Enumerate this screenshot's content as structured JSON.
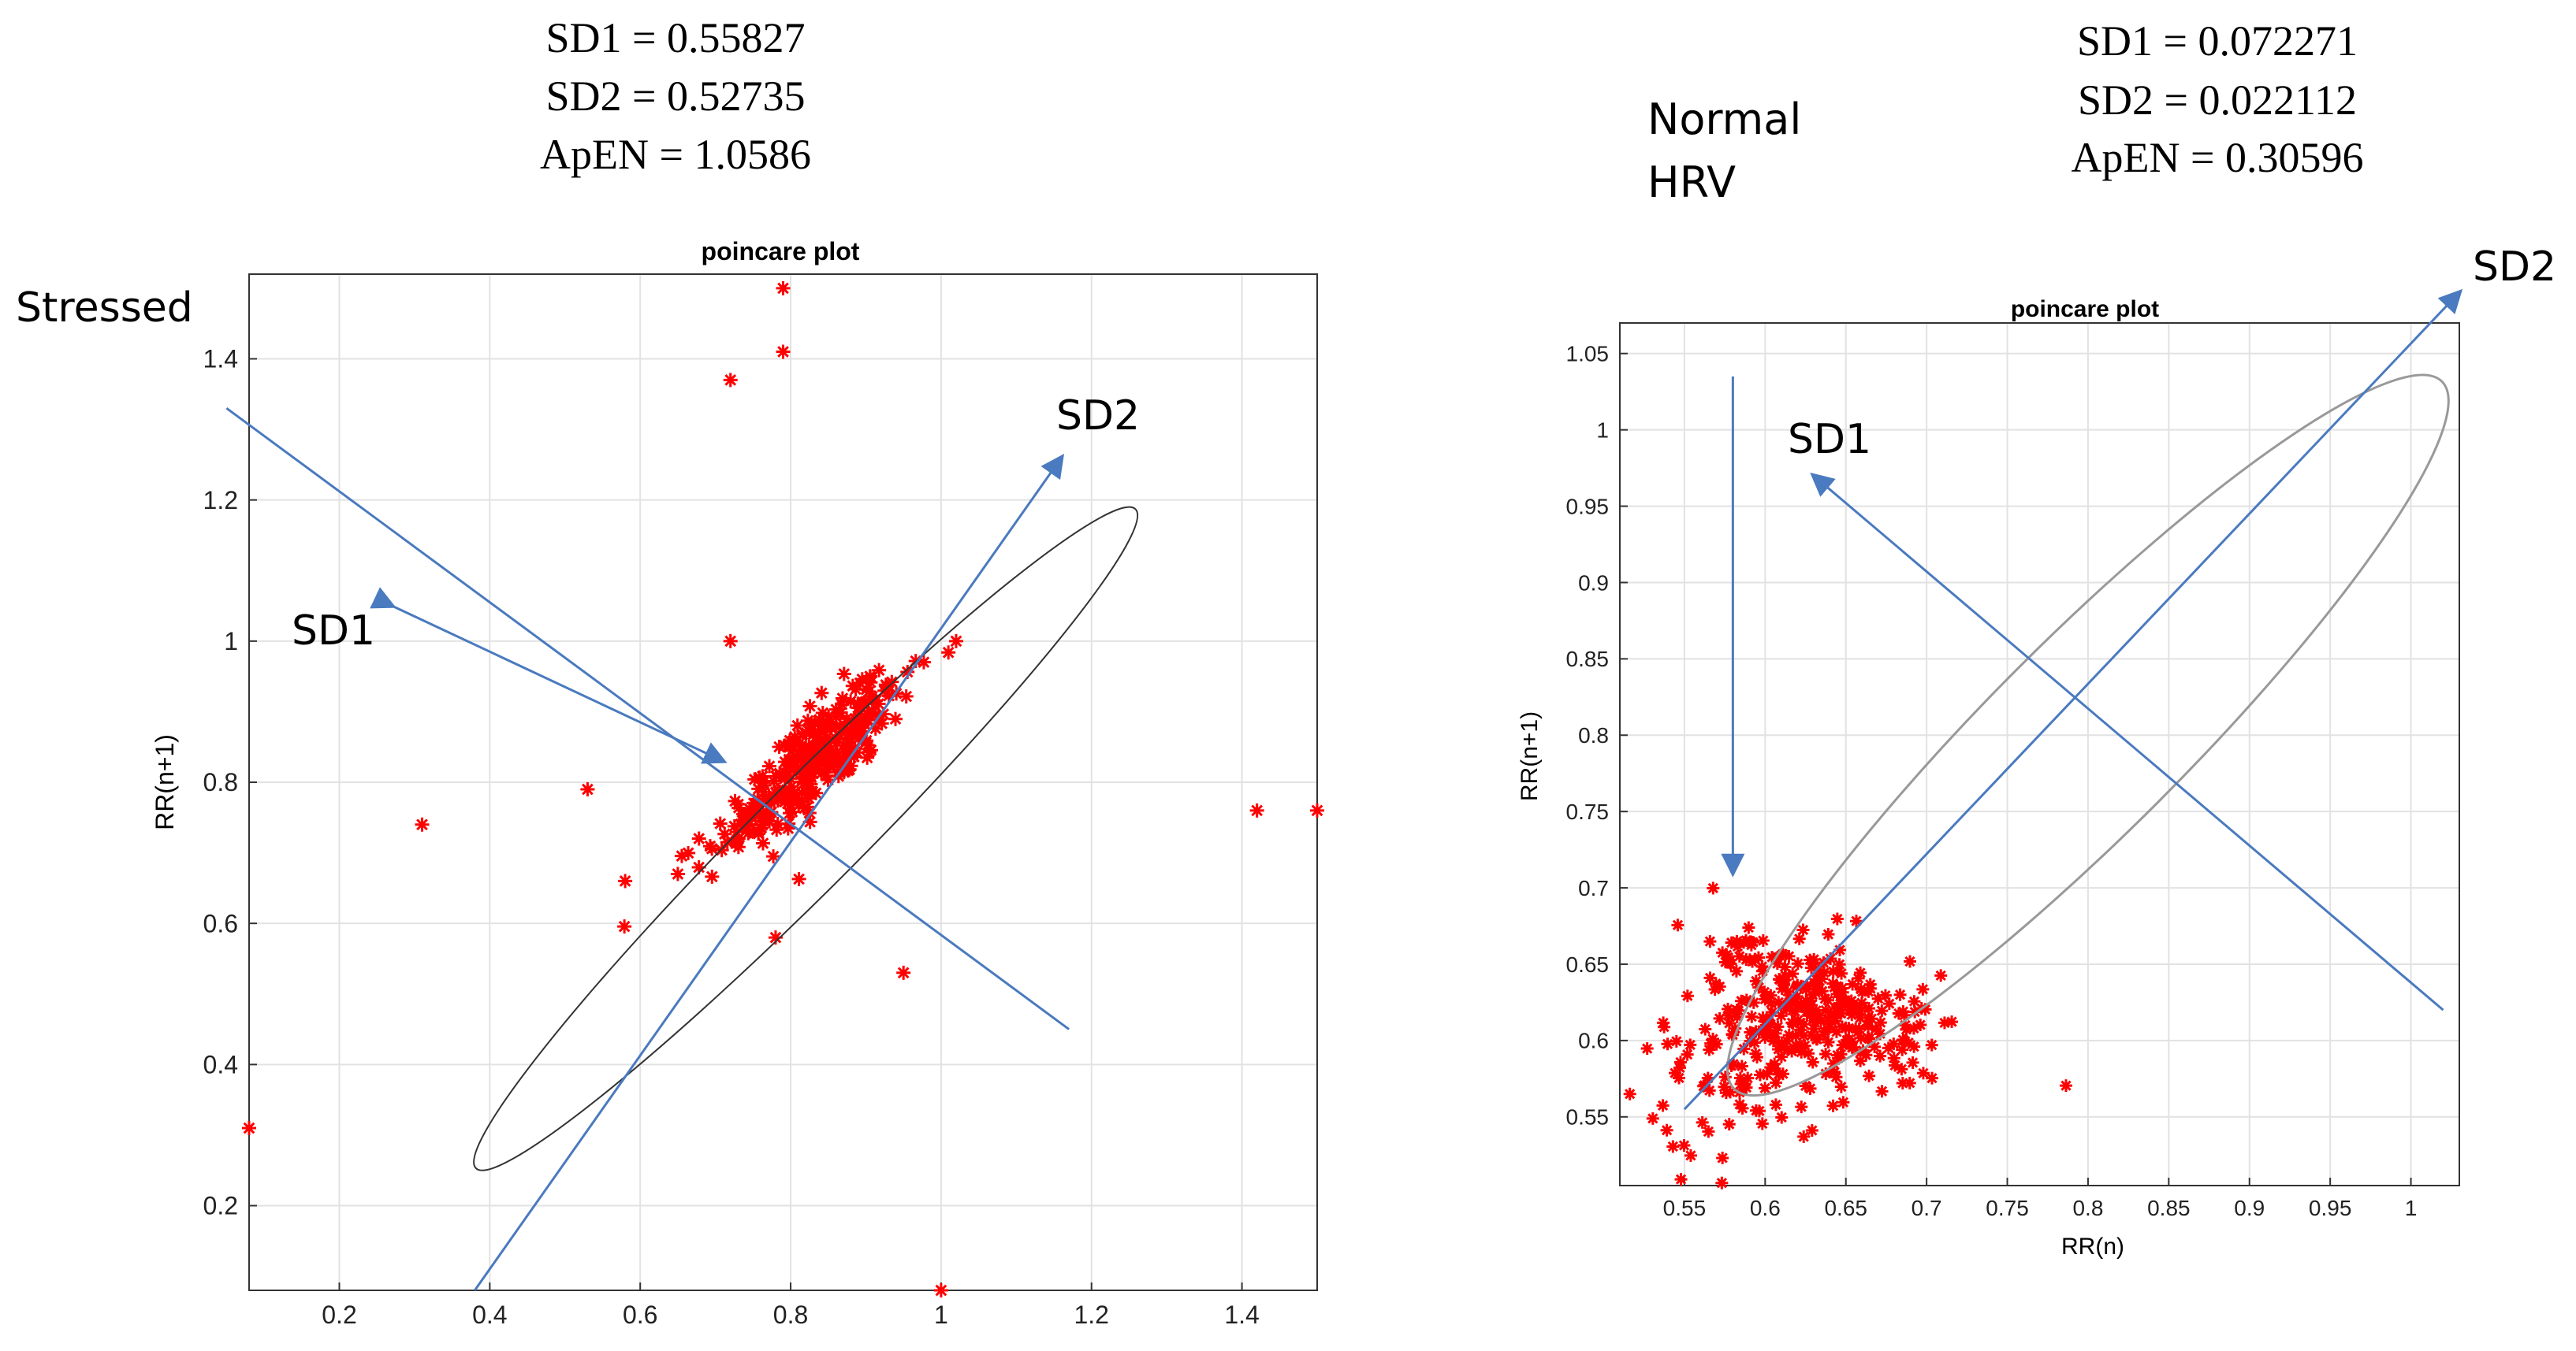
{
  "chart_data": [
    {
      "type": "scatter",
      "title": "poincare plot",
      "xlabel": "",
      "ylabel": "RR(n+1)",
      "xlim": [
        0.08,
        1.5
      ],
      "ylim": [
        0.08,
        1.52
      ],
      "xticks": [
        0.2,
        0.4,
        0.6,
        0.8,
        1,
        1.2,
        1.4
      ],
      "yticks": [
        0.2,
        0.4,
        0.6,
        0.8,
        1,
        1.2,
        1.4
      ],
      "grid": true,
      "stats": [
        "SD1 = 0.55827",
        "SD2 = 0.52735",
        "ApEN = 1.0586"
      ],
      "annotations": {
        "group": "Stressed",
        "sd1": "SD1",
        "sd2": "SD2"
      },
      "marker_color": "#ff0000",
      "axis_line_color": "#4a7abf",
      "ellipse": {
        "cx": 0.82,
        "cy": 0.72,
        "angle_deg": 45,
        "semi_major": 0.62,
        "semi_minor": 0.07
      },
      "sd2_axis": [
        [
          0.38,
          0.08
        ],
        [
          1.16,
          1.26
        ]
      ],
      "sd1_axis": [
        [
          0.27,
          1.05
        ],
        [
          0.71,
          0.83
        ]
      ],
      "group_line": [
        [
          0.05,
          1.33
        ],
        [
          1.17,
          0.45
        ]
      ],
      "outliers": [
        [
          0.79,
          1.5
        ],
        [
          0.79,
          1.41
        ],
        [
          0.72,
          1.37
        ],
        [
          0.08,
          0.31
        ],
        [
          0.31,
          0.74
        ],
        [
          1.42,
          0.76
        ],
        [
          1.5,
          0.76
        ],
        [
          1.0,
          0.08
        ],
        [
          0.95,
          0.53
        ],
        [
          0.78,
          0.58
        ],
        [
          0.53,
          0.79
        ],
        [
          0.58,
          0.66
        ],
        [
          0.65,
          0.67
        ],
        [
          1.02,
          1.0
        ],
        [
          0.72,
          1.0
        ]
      ],
      "cluster": {
        "center": [
          0.83,
          0.83
        ],
        "count": 320,
        "spread_major": 0.085,
        "spread_minor": 0.025
      }
    },
    {
      "type": "scatter",
      "title": "poincare plot",
      "xlabel": "RR(n)",
      "ylabel": "RR(n+1)",
      "xlim": [
        0.51,
        1.03
      ],
      "ylim": [
        0.505,
        1.07
      ],
      "xticks": [
        0.55,
        0.6,
        0.65,
        0.7,
        0.75,
        0.8,
        0.85,
        0.9,
        0.95,
        1
      ],
      "yticks": [
        0.55,
        0.6,
        0.65,
        0.7,
        0.75,
        0.8,
        0.85,
        0.9,
        0.95,
        1,
        1.05
      ],
      "grid": true,
      "stats": [
        "SD1 = 0.072271",
        "SD2 = 0.022112",
        "ApEN = 0.30596"
      ],
      "annotations": {
        "group_line1": "Normal",
        "group_line2": "HRV",
        "sd1": "SD1",
        "sd2": "SD2"
      },
      "marker_color": "#ff0000",
      "axis_line_color": "#4a7abf",
      "ellipse": {
        "cx": 0.8,
        "cy": 0.8,
        "angle_deg": 45,
        "semi_major": 0.31,
        "semi_minor": 0.06
      },
      "sd2_axis": [
        [
          0.55,
          0.555
        ],
        [
          1.03,
          1.09
        ]
      ],
      "sd1_axis": [
        [
          1.02,
          0.62
        ],
        [
          0.63,
          0.97
        ]
      ],
      "group_line": [
        [
          0.58,
          1.035
        ],
        [
          0.58,
          0.71
        ]
      ],
      "cluster": {
        "center": [
          0.62,
          0.62
        ],
        "count": 380,
        "spread_major": 0.05,
        "spread_minor": 0.03
      }
    }
  ]
}
